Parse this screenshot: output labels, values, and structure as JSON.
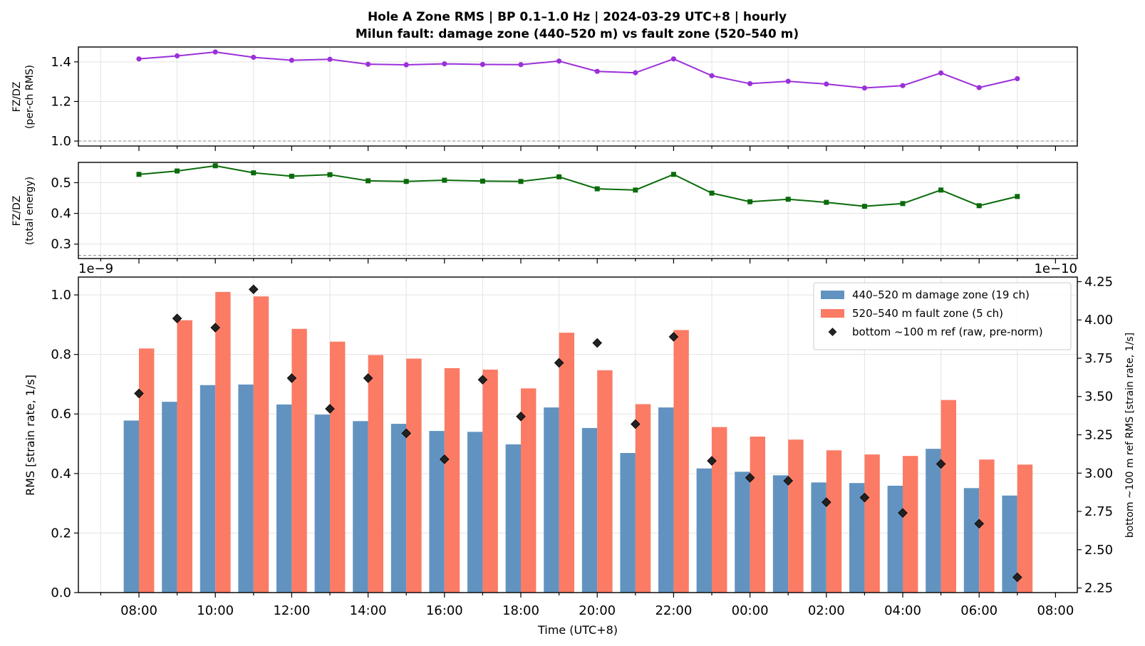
{
  "titles": {
    "line1": "Hole A Zone RMS  |  BP 0.1–1.0 Hz  |  2024-03-29 UTC+8  |  hourly",
    "line2": "Milun fault: damage zone (440–520 m) vs fault zone (520–540 m)"
  },
  "chart_data": [
    {
      "type": "line",
      "panel": "top",
      "ylabel_line1": "FZ/DZ",
      "ylabel_line2": "(per-ch RMS)",
      "ylim": [
        0.975,
        1.475
      ],
      "yticks": [
        "1.0",
        "1.2",
        "1.4"
      ],
      "reference_line": 1.0,
      "grid": true,
      "color": "#9b30d9",
      "marker": "circle",
      "x_hours": [
        0,
        1,
        2,
        3,
        4,
        5,
        6,
        7,
        8,
        9,
        10,
        11,
        12,
        13,
        14,
        15,
        16,
        17,
        18,
        19,
        20,
        21,
        22,
        23
      ],
      "values": [
        1.415,
        1.43,
        1.45,
        1.423,
        1.408,
        1.413,
        1.388,
        1.385,
        1.39,
        1.387,
        1.386,
        1.404,
        1.352,
        1.345,
        1.415,
        1.33,
        1.29,
        1.302,
        1.288,
        1.268,
        1.28,
        1.344,
        1.27,
        1.315
      ]
    },
    {
      "type": "line",
      "panel": "middle",
      "ylabel_line1": "FZ/DZ",
      "ylabel_line2": "(total energy)",
      "ylim": [
        0.253,
        0.566
      ],
      "yticks": [
        "0.3",
        "0.4",
        "0.5"
      ],
      "reference_line": 0.263,
      "grid": true,
      "color": "#0a6b0a",
      "marker": "square",
      "x_hours": [
        0,
        1,
        2,
        3,
        4,
        5,
        6,
        7,
        8,
        9,
        10,
        11,
        12,
        13,
        14,
        15,
        16,
        17,
        18,
        19,
        20,
        21,
        22,
        23
      ],
      "values": [
        0.527,
        0.538,
        0.555,
        0.532,
        0.521,
        0.526,
        0.506,
        0.504,
        0.508,
        0.505,
        0.504,
        0.519,
        0.48,
        0.476,
        0.527,
        0.466,
        0.438,
        0.446,
        0.436,
        0.423,
        0.432,
        0.476,
        0.425,
        0.455
      ]
    },
    {
      "type": "bar",
      "panel": "bottom",
      "xlabel": "Time (UTC+8)",
      "ylabel": "RMS  [strain rate, 1/s]",
      "ylabel_right": "bottom ~100 m ref RMS  [strain rate, 1/s]",
      "offset_left": "1e−9",
      "offset_right": "1e−10",
      "ylim": [
        0,
        1.06
      ],
      "yticks": [
        "0.0",
        "0.2",
        "0.4",
        "0.6",
        "0.8",
        "1.0"
      ],
      "ylim_right": [
        2.22,
        4.28
      ],
      "yticks_right": [
        "2.25",
        "2.50",
        "2.75",
        "3.00",
        "3.25",
        "3.50",
        "3.75",
        "4.00",
        "4.25"
      ],
      "grid": true,
      "xticks": [
        "08:00",
        "10:00",
        "12:00",
        "14:00",
        "16:00",
        "18:00",
        "20:00",
        "22:00",
        "00:00",
        "02:00",
        "04:00",
        "06:00",
        "08:00"
      ],
      "legend_position": "upper-right",
      "series": [
        {
          "name": "440–520 m  damage zone (19 ch)",
          "color": "#6293c0",
          "values": [
            0.578,
            0.641,
            0.697,
            0.699,
            0.632,
            0.598,
            0.576,
            0.567,
            0.543,
            0.54,
            0.498,
            0.622,
            0.553,
            0.469,
            0.622,
            0.417,
            0.406,
            0.394,
            0.37,
            0.368,
            0.359,
            0.483,
            0.351,
            0.326
          ]
        },
        {
          "name": "520–540 m  fault zone (5 ch)",
          "color": "#fb7b65",
          "values": [
            0.82,
            0.915,
            1.01,
            0.995,
            0.886,
            0.843,
            0.798,
            0.786,
            0.754,
            0.749,
            0.686,
            0.873,
            0.747,
            0.633,
            0.882,
            0.556,
            0.524,
            0.514,
            0.478,
            0.464,
            0.459,
            0.647,
            0.447,
            0.43
          ]
        },
        {
          "name": "bottom ~100 m ref (raw, pre-norm)",
          "color": "#222222",
          "axis": "right",
          "values": [
            3.52,
            4.01,
            3.95,
            4.2,
            3.62,
            3.42,
            3.62,
            3.26,
            3.09,
            3.61,
            3.37,
            3.72,
            3.85,
            3.32,
            3.89,
            3.08,
            2.97,
            2.95,
            2.81,
            2.84,
            2.74,
            3.06,
            2.67,
            2.32
          ]
        }
      ]
    }
  ]
}
